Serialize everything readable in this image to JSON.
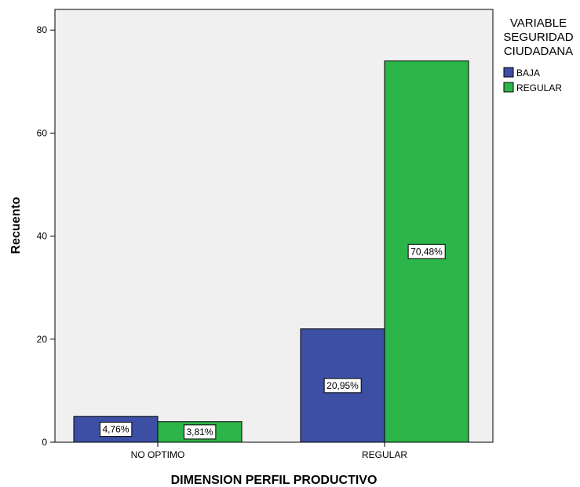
{
  "chart_data": {
    "type": "bar",
    "categories": [
      "NO OPTIMO",
      "REGULAR"
    ],
    "series": [
      {
        "name": "BAJA",
        "color": "#3c4fa5",
        "values": [
          5,
          22
        ],
        "labels": [
          "4,76%",
          "20,95%"
        ]
      },
      {
        "name": "REGULAR",
        "color": "#2cb548",
        "values": [
          4,
          74
        ],
        "labels": [
          "3,81%",
          "70,48%"
        ]
      }
    ],
    "xlabel": "DIMENSION PERFIL PRODUCTIVO",
    "ylabel": "Recuento",
    "ylim": [
      0,
      84
    ],
    "yticks": [
      "0",
      "20",
      "40",
      "60",
      "80"
    ],
    "grid": false,
    "plot_background": "#f0f0f0",
    "legend": {
      "title_lines": [
        "VARIABLE",
        "SEGURIDAD",
        "CIUDADANA"
      ],
      "placement": "right"
    }
  }
}
